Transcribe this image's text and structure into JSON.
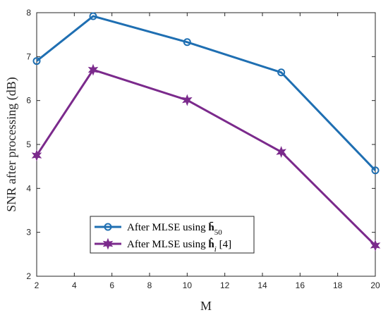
{
  "chart_data": {
    "type": "line",
    "xlabel": "M",
    "ylabel": "SNR after processing (dB)",
    "xlim": [
      2,
      20
    ],
    "ylim": [
      2,
      8
    ],
    "xticks": [
      2,
      4,
      6,
      8,
      10,
      12,
      14,
      16,
      18,
      20
    ],
    "yticks": [
      2,
      3,
      4,
      5,
      6,
      7,
      8
    ],
    "grid": false,
    "legend_position": "bottom-left",
    "series": [
      {
        "name": "After MLSE using h̄50",
        "name_main": "After MLSE using ",
        "name_symbol": "h̄",
        "name_sub": "50",
        "name_suffix": "",
        "color": "#1f6fb2",
        "marker": "circle",
        "x": [
          2,
          5,
          10,
          15,
          20
        ],
        "y": [
          6.9,
          7.92,
          7.33,
          6.64,
          4.41
        ]
      },
      {
        "name": "After MLSE using ĥi [4]",
        "name_main": "After MLSE using ",
        "name_symbol": "ĥ",
        "name_sub": "i",
        "name_suffix": " [4]",
        "color": "#7b2a8c",
        "marker": "star",
        "x": [
          2,
          5,
          10,
          15,
          20
        ],
        "y": [
          4.75,
          6.7,
          6.01,
          4.83,
          2.7
        ]
      }
    ]
  }
}
